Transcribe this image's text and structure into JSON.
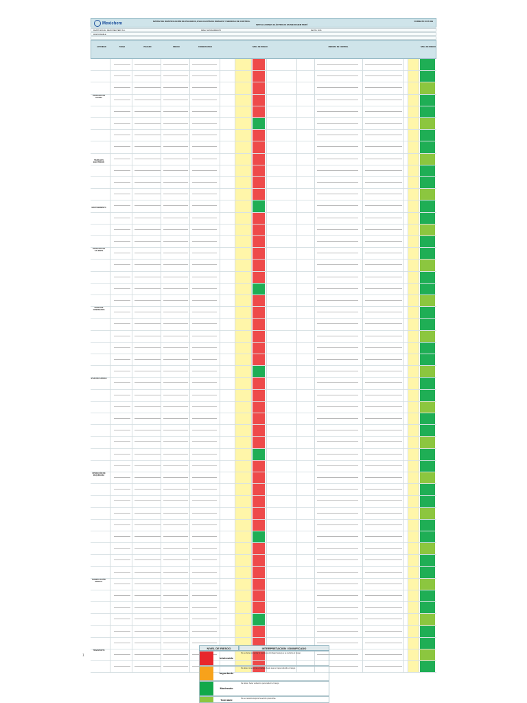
{
  "header": {
    "logo_text": "Mexichem",
    "title": "MATRIZ DE IDENTIFICACIÓN DE PELIGROS, EVALUACIÓN DE RIESGOS Y MEDIDAS DE CONTROL",
    "subtitle": "INSTALACIONES ELÉCTRICAS EN MEXICHEM PERÚ",
    "code": "FORMATO SST-009"
  },
  "meta": {
    "company": "RAZÓN SOCIAL: MEXICHEM PERÚ S.A.",
    "area": "ÁREA: MANTENIMIENTO",
    "date": "FECHA: 2016",
    "responsible": "RESPONSABLE"
  },
  "columns": [
    "ACTIVIDAD",
    "TAREA",
    "PELIGRO",
    "RIESGO",
    "CONSECUENCIA",
    "NIVEL DE RIESGO",
    "MEDIDAS DE CONTROL",
    "NIVEL DE RIESGO"
  ],
  "groups": [
    "TRABAJOS EN ALTURA",
    "TRABAJOS ELÉCTRICOS",
    "MANTENIMIENTO",
    "TRABAJOS EN CALIENTE",
    "ESPACIOS CONFINADOS",
    "IZAJE DE CARGAS",
    "OPERACIÓN DE MAQUINARIA",
    "MANIPULACIÓN MANUAL",
    "TRANSPORTE"
  ],
  "legend": {
    "title": "NIVEL DE RIESGO",
    "subtitle": "INTERPRETACIÓN / SIGNIFICADO",
    "levels": [
      {
        "range": "",
        "name": "Intolerable",
        "color": "#e8262b",
        "text": "No se debe comenzar ni continuar el trabajo hasta que se reduzca el riesgo."
      },
      {
        "range": "",
        "name": "Importante",
        "color": "#f7a21b",
        "text": "No debe comenzarse el trabajo hasta que se haya reducido el riesgo."
      },
      {
        "range": "",
        "name": "Moderado",
        "color": "#12a84a",
        "text": "Se deben hacer esfuerzos para reducir el riesgo."
      },
      {
        "range": "",
        "name": "Tolerable",
        "color": "#8cc63f",
        "text": "No se necesita mejorar la acción preventiva."
      }
    ]
  },
  "page_number": "1"
}
